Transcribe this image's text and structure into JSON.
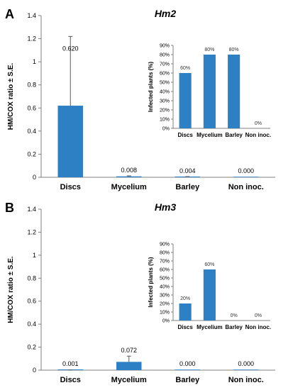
{
  "chart_data": [
    {
      "panel": "A",
      "type": "bar",
      "title": "Hm2",
      "ylabel": "HM/COX ratio ± S.E.",
      "ylim": [
        0,
        1.4
      ],
      "yticks": [
        "0",
        "0.2",
        "0.4",
        "0.6",
        "0.8",
        "1",
        "1.2",
        "1.4"
      ],
      "categories": [
        "Discs",
        "Mycelium",
        "Barley",
        "Non inoc."
      ],
      "values": [
        0.62,
        0.008,
        0.004,
        0.0
      ],
      "errors": [
        0.6,
        0.004,
        0.002,
        0.0
      ],
      "data_labels": [
        "0.620",
        "0.008",
        "0.004",
        "0.000"
      ],
      "color": "#2e80c5",
      "inset": {
        "type": "bar",
        "ylabel": "Infected plants (%)",
        "ylim": [
          0,
          90
        ],
        "yticks": [
          "0%",
          "10%",
          "20%",
          "30%",
          "40%",
          "50%",
          "60%",
          "70%",
          "80%",
          "90%"
        ],
        "categories": [
          "Discs",
          "Mycelium",
          "Barley",
          "Non inoc."
        ],
        "values": [
          60,
          80,
          80,
          0
        ],
        "data_labels": [
          "60%",
          "80%",
          "80%",
          "0%"
        ]
      }
    },
    {
      "panel": "B",
      "type": "bar",
      "title": "Hm3",
      "ylabel": "HM/COX ratio ± S.E.",
      "ylim": [
        0,
        1.4
      ],
      "yticks": [
        "0",
        "0.2",
        "0.4",
        "0.6",
        "0.8",
        "1",
        "1.2",
        "1.4"
      ],
      "categories": [
        "Discs",
        "Mycelium",
        "Barley",
        "Non inoc."
      ],
      "values": [
        0.001,
        0.072,
        0.0,
        0.0
      ],
      "errors": [
        0.0005,
        0.05,
        0.0,
        0.0
      ],
      "data_labels": [
        "0.001",
        "0.072",
        "0.000",
        "0.000"
      ],
      "color": "#2e80c5",
      "inset": {
        "type": "bar",
        "ylabel": "Infected plants (%)",
        "ylim": [
          0,
          90
        ],
        "yticks": [
          "0%",
          "10%",
          "20%",
          "30%",
          "40%",
          "50%",
          "60%",
          "70%",
          "80%",
          "90%"
        ],
        "categories": [
          "Discs",
          "Mycelium",
          "Barley",
          "Non inoc."
        ],
        "values": [
          20,
          60,
          0,
          0
        ],
        "data_labels": [
          "20%",
          "60%",
          "0%",
          "0%"
        ]
      }
    }
  ]
}
